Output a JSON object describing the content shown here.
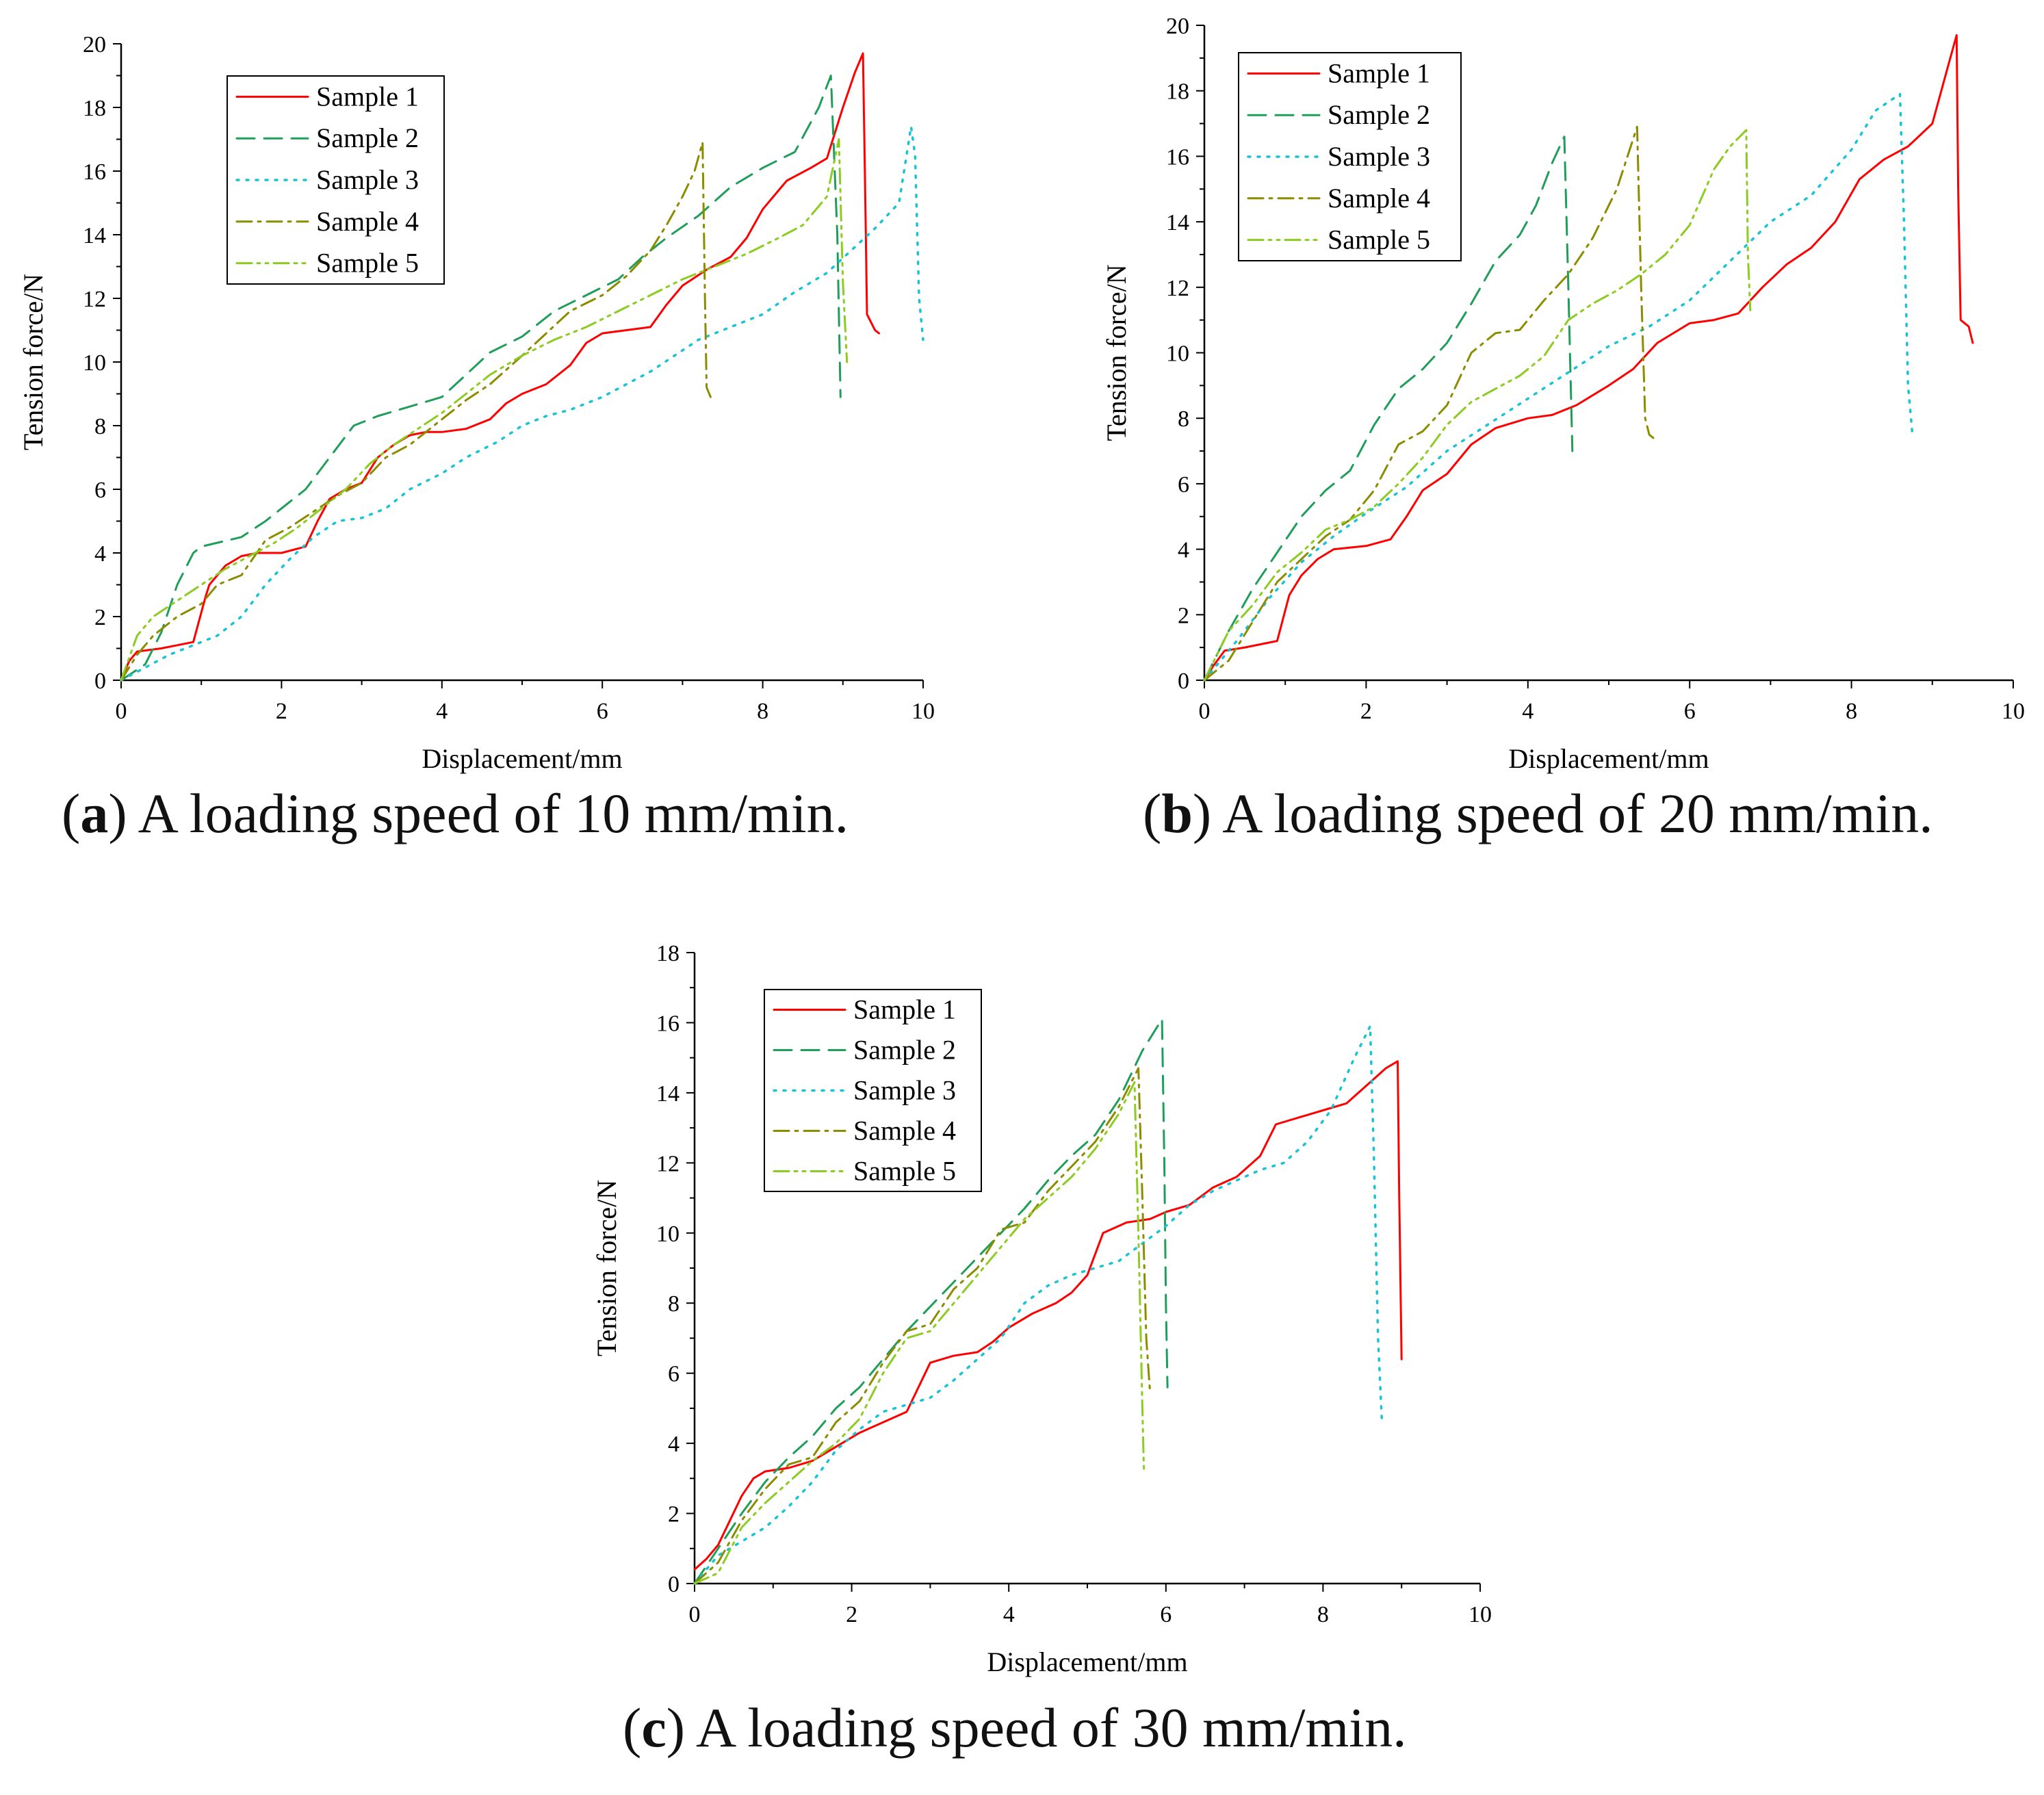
{
  "colors": {
    "sample1": "#ff0000",
    "sample2": "#1f9e5a",
    "sample3": "#19c3d6",
    "sample4": "#8c8c00",
    "sample5": "#8ccc20",
    "axis": "#000000"
  },
  "captions": {
    "a": {
      "label": "a",
      "text": "A loading speed of 10 mm/min."
    },
    "b": {
      "label": "b",
      "text": "A loading speed of 20 mm/min."
    },
    "c": {
      "label": "c",
      "text": "A loading speed of 30 mm/min."
    }
  },
  "chart_data": [
    {
      "id": "a",
      "type": "line",
      "title": "",
      "xlabel": "Displacement/mm",
      "ylabel": "Tension force/N",
      "xlim": [
        0,
        10
      ],
      "ylim": [
        0,
        20
      ],
      "xticks": [
        0,
        2,
        4,
        6,
        8,
        10
      ],
      "yticks": [
        0,
        2,
        4,
        6,
        8,
        10,
        12,
        14,
        16,
        18,
        20
      ],
      "legend_position": "top-left",
      "series": [
        {
          "name": "Sample 1",
          "style": "solid",
          "color": "sample1",
          "x": [
            0,
            0.1,
            0.2,
            0.5,
            0.9,
            1.05,
            1.1,
            1.3,
            1.5,
            1.7,
            2.0,
            2.3,
            2.45,
            2.6,
            2.8,
            3.0,
            3.2,
            3.4,
            3.6,
            3.8,
            4.0,
            4.3,
            4.6,
            4.8,
            5.0,
            5.3,
            5.6,
            5.8,
            6.0,
            6.3,
            6.6,
            6.8,
            7.0,
            7.3,
            7.6,
            7.8,
            8.0,
            8.3,
            8.6,
            8.8,
            9.0,
            9.15,
            9.25,
            9.28,
            9.3,
            9.4,
            9.45
          ],
          "y": [
            0,
            0.6,
            0.9,
            1.0,
            1.2,
            2.6,
            3.0,
            3.6,
            3.9,
            4.0,
            4.0,
            4.2,
            5.0,
            5.7,
            6.0,
            6.2,
            7.0,
            7.4,
            7.7,
            7.8,
            7.8,
            7.9,
            8.2,
            8.7,
            9.0,
            9.3,
            9.9,
            10.6,
            10.9,
            11.0,
            11.1,
            11.8,
            12.4,
            12.9,
            13.3,
            13.9,
            14.8,
            15.7,
            16.1,
            16.4,
            18.0,
            19.1,
            19.7,
            15.0,
            11.5,
            11.0,
            10.9
          ]
        },
        {
          "name": "Sample 2",
          "style": "dashed",
          "color": "sample2",
          "x": [
            0,
            0.3,
            0.5,
            0.7,
            0.9,
            1.0,
            1.5,
            1.8,
            2.0,
            2.3,
            2.6,
            2.9,
            3.2,
            3.6,
            4.0,
            4.3,
            4.6,
            5.0,
            5.4,
            5.8,
            6.2,
            6.5,
            6.8,
            7.2,
            7.6,
            8.0,
            8.4,
            8.7,
            8.85,
            8.93,
            8.97
          ],
          "y": [
            0,
            0.5,
            1.5,
            3.0,
            4.0,
            4.2,
            4.5,
            5.0,
            5.4,
            6.0,
            7.0,
            8.0,
            8.3,
            8.6,
            8.9,
            9.6,
            10.3,
            10.8,
            11.6,
            12.1,
            12.6,
            13.3,
            13.9,
            14.6,
            15.5,
            16.1,
            16.6,
            18.0,
            19.0,
            14.0,
            8.9
          ]
        },
        {
          "name": "Sample 3",
          "style": "dotted",
          "color": "sample3",
          "x": [
            0,
            0.3,
            0.6,
            0.9,
            1.2,
            1.5,
            1.8,
            2.1,
            2.4,
            2.7,
            3.0,
            3.3,
            3.6,
            4.0,
            4.3,
            4.7,
            5.0,
            5.3,
            5.6,
            6.0,
            6.3,
            6.6,
            6.9,
            7.2,
            7.6,
            8.0,
            8.4,
            8.8,
            9.1,
            9.4,
            9.7,
            9.85,
            9.9,
            9.95,
            10.0
          ],
          "y": [
            0,
            0.4,
            0.8,
            1.1,
            1.4,
            2.0,
            3.0,
            3.8,
            4.5,
            5.0,
            5.1,
            5.4,
            6.0,
            6.5,
            7.0,
            7.5,
            8.0,
            8.3,
            8.5,
            8.9,
            9.3,
            9.7,
            10.2,
            10.7,
            11.1,
            11.5,
            12.2,
            12.8,
            13.5,
            14.2,
            15.0,
            17.4,
            16.5,
            12.0,
            10.7
          ]
        },
        {
          "name": "Sample 4",
          "style": "dashdot",
          "color": "sample4",
          "x": [
            0,
            0.2,
            0.4,
            0.7,
            1.0,
            1.2,
            1.5,
            1.8,
            2.1,
            2.4,
            2.7,
            3.0,
            3.3,
            3.6,
            4.0,
            4.3,
            4.6,
            5.0,
            5.3,
            5.6,
            6.0,
            6.3,
            6.6,
            6.8,
            7.0,
            7.15,
            7.25,
            7.28,
            7.3,
            7.35
          ],
          "y": [
            0,
            0.8,
            1.4,
            2.0,
            2.4,
            3.0,
            3.3,
            4.4,
            4.8,
            5.3,
            5.8,
            6.2,
            7.0,
            7.4,
            8.2,
            8.8,
            9.3,
            10.2,
            10.9,
            11.6,
            12.1,
            12.7,
            13.5,
            14.3,
            15.2,
            16.0,
            16.9,
            12.0,
            9.2,
            8.9
          ]
        },
        {
          "name": "Sample 5",
          "style": "dashdotdot",
          "color": "sample5",
          "x": [
            0,
            0.2,
            0.4,
            0.7,
            1.0,
            1.3,
            1.6,
            1.9,
            2.2,
            2.5,
            2.8,
            3.1,
            3.4,
            3.7,
            4.0,
            4.3,
            4.6,
            5.0,
            5.4,
            5.8,
            6.2,
            6.6,
            7.0,
            7.4,
            7.8,
            8.2,
            8.5,
            8.8,
            8.95,
            9.0,
            9.05
          ],
          "y": [
            0,
            1.4,
            2.0,
            2.5,
            3.0,
            3.5,
            3.9,
            4.3,
            4.8,
            5.4,
            6.0,
            6.8,
            7.4,
            7.9,
            8.4,
            9.0,
            9.6,
            10.2,
            10.7,
            11.1,
            11.6,
            12.1,
            12.6,
            13.0,
            13.4,
            13.9,
            14.3,
            15.2,
            17.0,
            12.5,
            10.0
          ]
        }
      ]
    },
    {
      "id": "b",
      "type": "line",
      "title": "",
      "xlabel": "Displacement/mm",
      "ylabel": "Tension force/N",
      "xlim": [
        0,
        10
      ],
      "ylim": [
        0,
        20
      ],
      "xticks": [
        0,
        2,
        4,
        6,
        8,
        10
      ],
      "yticks": [
        0,
        2,
        4,
        6,
        8,
        10,
        12,
        14,
        16,
        18,
        20
      ],
      "legend_position": "top-left",
      "series": [
        {
          "name": "Sample 1",
          "style": "solid",
          "color": "sample1",
          "x": [
            0,
            0.1,
            0.25,
            0.5,
            0.9,
            1.05,
            1.2,
            1.4,
            1.6,
            2.0,
            2.3,
            2.5,
            2.7,
            3.0,
            3.3,
            3.6,
            4.0,
            4.3,
            4.6,
            5.0,
            5.3,
            5.6,
            6.0,
            6.3,
            6.6,
            6.9,
            7.2,
            7.5,
            7.8,
            8.1,
            8.4,
            8.7,
            9.0,
            9.2,
            9.3,
            9.32,
            9.35,
            9.45,
            9.5
          ],
          "y": [
            0,
            0.4,
            0.9,
            1.0,
            1.2,
            2.6,
            3.2,
            3.7,
            4.0,
            4.1,
            4.3,
            5.0,
            5.8,
            6.3,
            7.2,
            7.7,
            8.0,
            8.1,
            8.4,
            9.0,
            9.5,
            10.3,
            10.9,
            11.0,
            11.2,
            12.0,
            12.7,
            13.2,
            14.0,
            15.3,
            15.9,
            16.3,
            17.0,
            18.8,
            19.7,
            15.0,
            11.0,
            10.8,
            10.3
          ]
        },
        {
          "name": "Sample 2",
          "style": "dashed",
          "color": "sample2",
          "x": [
            0,
            0.3,
            0.6,
            0.9,
            1.2,
            1.5,
            1.8,
            2.1,
            2.4,
            2.7,
            3.0,
            3.3,
            3.6,
            3.9,
            4.1,
            4.3,
            4.45,
            4.5,
            4.55
          ],
          "y": [
            0,
            1.5,
            2.8,
            3.9,
            5.0,
            5.8,
            6.4,
            7.8,
            8.9,
            9.5,
            10.3,
            11.5,
            12.8,
            13.6,
            14.5,
            15.8,
            16.6,
            12.0,
            7.0
          ]
        },
        {
          "name": "Sample 3",
          "style": "dotted",
          "color": "sample3",
          "x": [
            0,
            0.4,
            0.8,
            1.2,
            1.6,
            2.0,
            2.5,
            3.0,
            3.5,
            4.0,
            4.5,
            5.0,
            5.5,
            6.0,
            6.5,
            7.0,
            7.5,
            8.0,
            8.3,
            8.6,
            8.65,
            8.7,
            8.75
          ],
          "y": [
            0,
            1.2,
            2.5,
            3.6,
            4.4,
            5.1,
            5.9,
            7.0,
            7.8,
            8.6,
            9.4,
            10.2,
            10.8,
            11.6,
            12.8,
            14.0,
            14.8,
            16.2,
            17.4,
            17.9,
            14.0,
            9.0,
            7.6
          ]
        },
        {
          "name": "Sample 4",
          "style": "dashdot",
          "color": "sample4",
          "x": [
            0,
            0.3,
            0.6,
            0.9,
            1.2,
            1.5,
            1.8,
            2.1,
            2.4,
            2.7,
            3.0,
            3.3,
            3.6,
            3.9,
            4.2,
            4.5,
            4.8,
            5.1,
            5.35,
            5.4,
            5.45,
            5.5,
            5.55
          ],
          "y": [
            0,
            0.6,
            1.8,
            3.0,
            3.7,
            4.4,
            4.9,
            5.8,
            7.2,
            7.6,
            8.4,
            10.0,
            10.6,
            10.7,
            11.6,
            12.4,
            13.5,
            15.0,
            16.9,
            12.0,
            8.0,
            7.5,
            7.4
          ]
        },
        {
          "name": "Sample 5",
          "style": "dashdotdot",
          "color": "sample5",
          "x": [
            0,
            0.3,
            0.6,
            0.9,
            1.2,
            1.5,
            1.8,
            2.1,
            2.4,
            2.7,
            3.0,
            3.3,
            3.6,
            3.9,
            4.2,
            4.5,
            4.8,
            5.1,
            5.4,
            5.7,
            6.0,
            6.3,
            6.5,
            6.7,
            6.72,
            6.75
          ],
          "y": [
            0,
            1.5,
            2.3,
            3.3,
            3.9,
            4.6,
            4.9,
            5.3,
            6.0,
            6.8,
            7.8,
            8.5,
            8.9,
            9.3,
            9.9,
            11.0,
            11.5,
            11.9,
            12.4,
            13.0,
            13.9,
            15.6,
            16.3,
            16.8,
            13.0,
            11.3
          ]
        }
      ]
    },
    {
      "id": "c",
      "type": "line",
      "title": "",
      "xlabel": "Displacement/mm",
      "ylabel": "Tension force/N",
      "xlim": [
        0,
        10
      ],
      "ylim": [
        0,
        18
      ],
      "xticks": [
        0,
        2,
        4,
        6,
        8,
        10
      ],
      "yticks": [
        0,
        2,
        4,
        6,
        8,
        10,
        12,
        14,
        16,
        18
      ],
      "legend_position": "top-left",
      "series": [
        {
          "name": "Sample 1",
          "style": "solid",
          "color": "sample1",
          "x": [
            0,
            0.15,
            0.3,
            0.45,
            0.6,
            0.75,
            0.9,
            1.2,
            1.5,
            1.8,
            2.1,
            2.4,
            2.7,
            2.85,
            3.0,
            3.3,
            3.6,
            3.8,
            4.0,
            4.3,
            4.6,
            4.8,
            5.0,
            5.2,
            5.5,
            5.8,
            6.0,
            6.3,
            6.6,
            6.9,
            7.2,
            7.4,
            7.7,
            8.0,
            8.3,
            8.6,
            8.8,
            8.95,
            8.97,
            9.0
          ],
          "y": [
            0.4,
            0.7,
            1.1,
            1.8,
            2.5,
            3.0,
            3.2,
            3.3,
            3.5,
            3.9,
            4.3,
            4.6,
            4.9,
            5.6,
            6.3,
            6.5,
            6.6,
            6.9,
            7.3,
            7.7,
            8.0,
            8.3,
            8.8,
            10.0,
            10.3,
            10.4,
            10.6,
            10.8,
            11.3,
            11.6,
            12.2,
            13.1,
            13.3,
            13.5,
            13.7,
            14.3,
            14.7,
            14.9,
            11.0,
            6.4
          ]
        },
        {
          "name": "Sample 2",
          "style": "dashed",
          "color": "sample2",
          "x": [
            0,
            0.3,
            0.6,
            0.9,
            1.2,
            1.5,
            1.8,
            2.1,
            2.4,
            2.7,
            3.0,
            3.3,
            3.6,
            3.9,
            4.2,
            4.5,
            4.8,
            5.1,
            5.4,
            5.7,
            5.95,
            5.98,
            6.0,
            6.02
          ],
          "y": [
            0,
            1.0,
            2.0,
            2.9,
            3.6,
            4.2,
            5.0,
            5.6,
            6.4,
            7.2,
            7.9,
            8.6,
            9.3,
            10.0,
            10.7,
            11.5,
            12.2,
            12.8,
            13.8,
            15.2,
            16.1,
            12.0,
            8.0,
            5.6
          ]
        },
        {
          "name": "Sample 3",
          "style": "dotted",
          "color": "sample3",
          "x": [
            0,
            0.3,
            0.6,
            0.9,
            1.2,
            1.5,
            1.8,
            2.1,
            2.4,
            2.7,
            3.0,
            3.3,
            3.6,
            3.9,
            4.2,
            4.5,
            4.8,
            5.1,
            5.4,
            5.7,
            6.0,
            6.3,
            6.6,
            6.9,
            7.2,
            7.5,
            7.8,
            8.1,
            8.4,
            8.6,
            8.65,
            8.7,
            8.75
          ],
          "y": [
            0,
            0.8,
            1.2,
            1.6,
            2.2,
            2.9,
            3.8,
            4.4,
            4.9,
            5.1,
            5.3,
            5.8,
            6.4,
            7.0,
            8.0,
            8.5,
            8.8,
            9.0,
            9.2,
            9.7,
            10.2,
            10.8,
            11.2,
            11.5,
            11.8,
            12.0,
            12.6,
            13.5,
            15.0,
            15.9,
            12.0,
            7.0,
            4.6
          ]
        },
        {
          "name": "Sample 4",
          "style": "dashdot",
          "color": "sample4",
          "x": [
            0,
            0.3,
            0.6,
            0.9,
            1.2,
            1.5,
            1.8,
            2.1,
            2.4,
            2.7,
            3.0,
            3.3,
            3.6,
            3.9,
            4.2,
            4.5,
            4.8,
            5.1,
            5.4,
            5.65,
            5.7,
            5.75,
            5.8
          ],
          "y": [
            0,
            0.6,
            1.8,
            2.7,
            3.4,
            3.6,
            4.6,
            5.2,
            6.3,
            7.2,
            7.4,
            8.4,
            9.0,
            10.1,
            10.3,
            11.2,
            11.9,
            12.6,
            13.6,
            14.7,
            11.0,
            7.0,
            5.4
          ]
        },
        {
          "name": "Sample 5",
          "style": "dashdotdot",
          "color": "sample5",
          "x": [
            0,
            0.3,
            0.6,
            0.9,
            1.2,
            1.5,
            1.8,
            2.1,
            2.4,
            2.7,
            3.0,
            3.3,
            3.6,
            3.9,
            4.2,
            4.5,
            4.8,
            5.1,
            5.4,
            5.6,
            5.65,
            5.7,
            5.72
          ],
          "y": [
            0,
            0.3,
            1.6,
            2.3,
            2.9,
            3.5,
            4.0,
            4.7,
            6.0,
            7.0,
            7.2,
            8.0,
            8.8,
            9.6,
            10.4,
            11.0,
            11.6,
            12.4,
            13.4,
            14.3,
            10.0,
            5.0,
            3.2
          ]
        }
      ]
    }
  ]
}
